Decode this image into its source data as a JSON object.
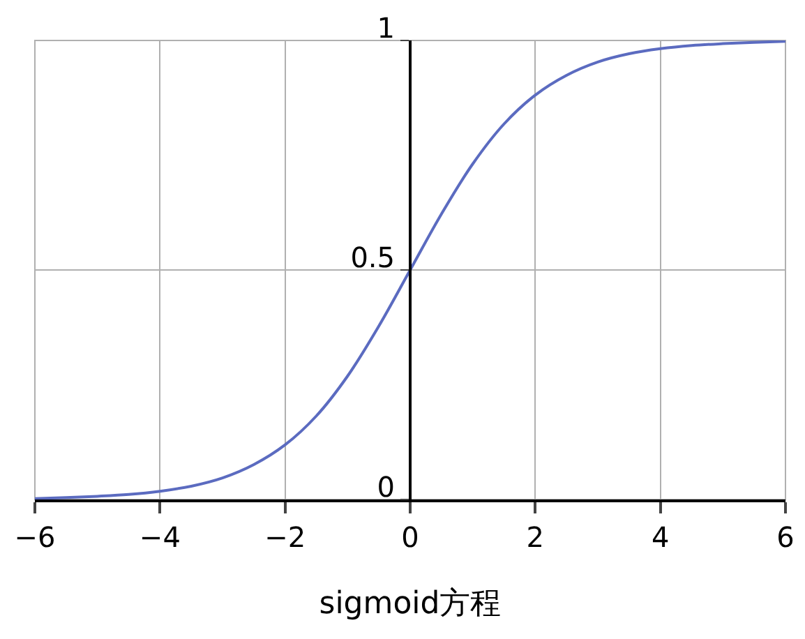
{
  "chart_data": {
    "type": "line",
    "xlabel": "sigmoid方程",
    "x": [
      -6,
      -5.5,
      -5,
      -4.5,
      -4,
      -3.5,
      -3,
      -2.5,
      -2,
      -1.5,
      -1,
      -0.5,
      0,
      0.5,
      1,
      1.5,
      2,
      2.5,
      3,
      3.5,
      4,
      4.5,
      5,
      5.5,
      6
    ],
    "series": [
      {
        "color": "#5b6bc0",
        "values": [
          0.002,
          0.004,
          0.007,
          0.011,
          0.018,
          0.029,
          0.047,
          0.076,
          0.119,
          0.182,
          0.269,
          0.378,
          0.5,
          0.622,
          0.731,
          0.818,
          0.881,
          0.924,
          0.953,
          0.971,
          0.982,
          0.989,
          0.993,
          0.996,
          0.998
        ]
      }
    ],
    "xlim": [
      -6,
      6
    ],
    "ylim": [
      0,
      1
    ],
    "xticks": [
      {
        "value": -6,
        "label": "−6"
      },
      {
        "value": -4,
        "label": "−4"
      },
      {
        "value": -2,
        "label": "−2"
      },
      0,
      2,
      4,
      6
    ],
    "yticks": [
      0,
      0.5,
      1
    ],
    "grid": true,
    "marker": "none",
    "line_style": "solid"
  }
}
